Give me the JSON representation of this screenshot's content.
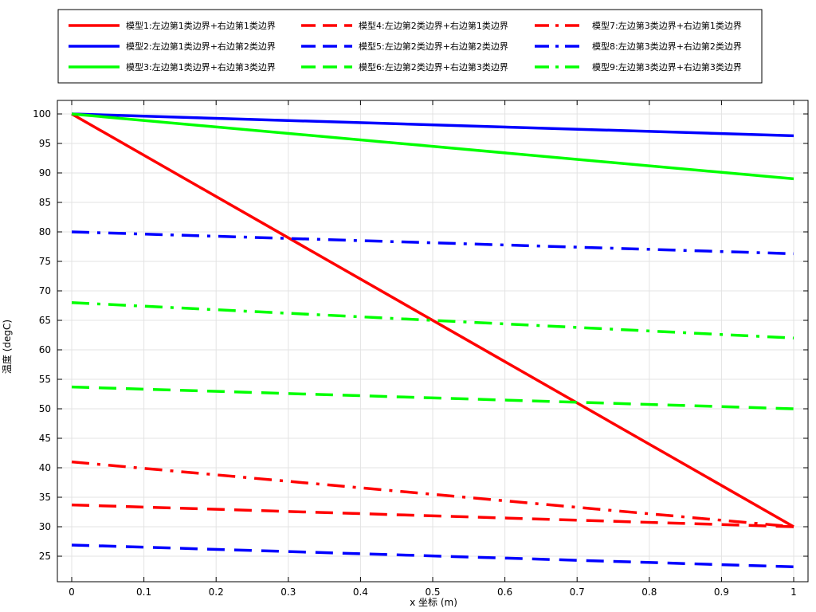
{
  "chart_data": {
    "type": "line",
    "xlabel": "x 坐标 (m)",
    "ylabel": "温度 (degC)",
    "xlim": [
      0,
      1
    ],
    "ylim": [
      21,
      103
    ],
    "x_ticks": [
      "0",
      "0.1",
      "0.2",
      "0.3",
      "0.4",
      "0.5",
      "0.6",
      "0.7",
      "0.8",
      "0.9",
      "1"
    ],
    "y_ticks": [
      "25",
      "30",
      "35",
      "40",
      "45",
      "50",
      "55",
      "60",
      "65",
      "70",
      "75",
      "80",
      "85",
      "90",
      "95",
      "100"
    ],
    "grid": true,
    "legend_position": "top",
    "x": [
      0,
      1
    ],
    "series": [
      {
        "name": "模型1:左边第1类边界+右边第1类边界",
        "color": "#ff0000",
        "dash": "solid",
        "values": [
          100,
          30
        ]
      },
      {
        "name": "模型2:左边第1类边界+右边第2类边界",
        "color": "#0000ff",
        "dash": "solid",
        "values": [
          100,
          96.3
        ]
      },
      {
        "name": "模型3:左边第1类边界+右边第3类边界",
        "color": "#00ff00",
        "dash": "solid",
        "values": [
          100,
          89
        ]
      },
      {
        "name": "模型4:左边第2类边界+右边第1类边界",
        "color": "#ff0000",
        "dash": "dashed",
        "values": [
          33.7,
          30
        ]
      },
      {
        "name": "模型5:左边第2类边界+右边第2类边界",
        "color": "#0000ff",
        "dash": "dashed",
        "values": [
          26.9,
          23.2
        ]
      },
      {
        "name": "模型6:左边第2类边界+右边第3类边界",
        "color": "#00ff00",
        "dash": "dashed",
        "values": [
          53.7,
          50
        ]
      },
      {
        "name": "模型7:左边第3类边界+右边第1类边界",
        "color": "#ff0000",
        "dash": "dashdot",
        "values": [
          41,
          30
        ]
      },
      {
        "name": "模型8:左边第3类边界+右边第2类边界",
        "color": "#0000ff",
        "dash": "dashdot",
        "values": [
          80,
          76.3
        ]
      },
      {
        "name": "模型9:左边第3类边界+右边第3类边界",
        "color": "#00ff00",
        "dash": "dashdot",
        "values": [
          68,
          62
        ]
      }
    ]
  }
}
